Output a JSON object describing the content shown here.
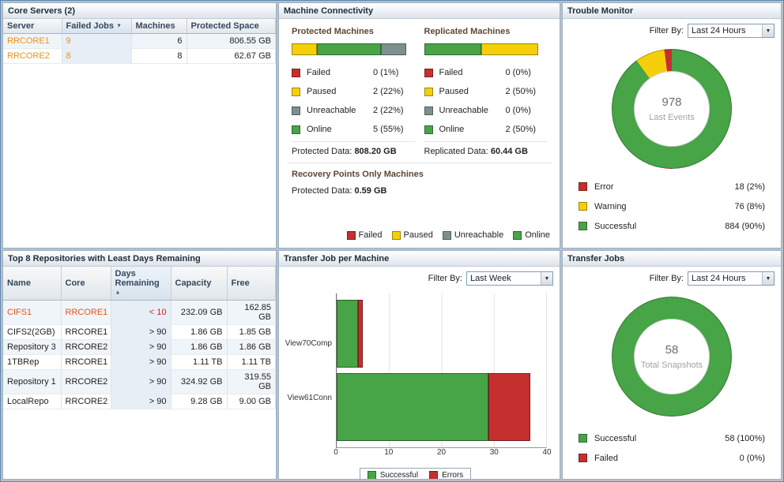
{
  "icons": {
    "sort_desc": "▼",
    "sort_asc": "▲",
    "dropdown": "▼"
  },
  "colors": {
    "online_green": "#47a447",
    "paused_yellow": "#f5cf0a",
    "failed_red": "#c5302f",
    "unreachable_gray": "#7e8f8f",
    "link_orange": "#ec9216",
    "alert_orange": "#e2571b"
  },
  "core_servers": {
    "title": "Core Servers (2)",
    "headers": {
      "server": "Server",
      "failed_jobs": "Failed Jobs",
      "machines": "Machines",
      "protected_space": "Protected Space"
    },
    "rows": [
      {
        "server": "RRCORE1",
        "failed_jobs": "9",
        "machines": "6",
        "protected_space": "806.55 GB"
      },
      {
        "server": "RRCORE2",
        "failed_jobs": "8",
        "machines": "8",
        "protected_space": "62.67 GB"
      }
    ]
  },
  "machine_connectivity": {
    "title": "Machine Connectivity",
    "protected": {
      "heading": "Protected Machines",
      "bar": [
        {
          "name": "Paused",
          "pct": 22,
          "color": "#f5cf0a"
        },
        {
          "name": "Online",
          "pct": 56,
          "color": "#47a447"
        },
        {
          "name": "Unreachable",
          "pct": 22,
          "color": "#7e8f8f"
        }
      ],
      "legend": [
        {
          "label": "Failed",
          "value": "0 (1%)",
          "color": "#c5302f"
        },
        {
          "label": "Paused",
          "value": "2 (22%)",
          "color": "#f5cf0a"
        },
        {
          "label": "Unreachable",
          "value": "2 (22%)",
          "color": "#7e8f8f"
        },
        {
          "label": "Online",
          "value": "5 (55%)",
          "color": "#47a447"
        }
      ],
      "data_label": "Protected Data:",
      "data_value": "808.20 GB"
    },
    "replicated": {
      "heading": "Replicated Machines",
      "bar": [
        {
          "name": "Online",
          "pct": 50,
          "color": "#47a447"
        },
        {
          "name": "Paused",
          "pct": 50,
          "color": "#f5cf0a"
        }
      ],
      "legend": [
        {
          "label": "Failed",
          "value": "0 (0%)",
          "color": "#c5302f"
        },
        {
          "label": "Paused",
          "value": "2 (50%)",
          "color": "#f5cf0a"
        },
        {
          "label": "Unreachable",
          "value": "0 (0%)",
          "color": "#7e8f8f"
        },
        {
          "label": "Online",
          "value": "2 (50%)",
          "color": "#47a447"
        }
      ],
      "data_label": "Replicated Data:",
      "data_value": "60.44 GB"
    },
    "recovery_points_only": {
      "heading": "Recovery Points Only Machines",
      "data_label": "Protected Data:",
      "data_value": "0.59 GB"
    },
    "bottom_legend": [
      {
        "label": "Failed",
        "color": "#c5302f"
      },
      {
        "label": "Paused",
        "color": "#f5cf0a"
      },
      {
        "label": "Unreachable",
        "color": "#7e8f8f"
      },
      {
        "label": "Online",
        "color": "#47a447"
      }
    ]
  },
  "trouble_monitor": {
    "title": "Trouble Monitor",
    "filter_label": "Filter By:",
    "filter_value": "Last 24 Hours",
    "donut": {
      "center_value": "978",
      "center_label": "Last Events",
      "segments": [
        {
          "name": "Successful",
          "pct": 90,
          "color": "#47a447"
        },
        {
          "name": "Warning",
          "pct": 8,
          "color": "#f5cf0a"
        },
        {
          "name": "Error",
          "pct": 2,
          "color": "#c5302f"
        }
      ]
    },
    "legend": [
      {
        "label": "Error",
        "value": "18 (2%)",
        "color": "#c5302f"
      },
      {
        "label": "Warning",
        "value": "76 (8%)",
        "color": "#f5cf0a"
      },
      {
        "label": "Successful",
        "value": "884 (90%)",
        "color": "#47a447"
      }
    ]
  },
  "repositories": {
    "title": "Top 8 Repositories with Least Days Remaining",
    "headers": {
      "name": "Name",
      "core": "Core",
      "days_remaining": "Days Remaining",
      "capacity": "Capacity",
      "free": "Free"
    },
    "rows": [
      {
        "name": "CIFS1",
        "core": "RRCORE1",
        "days": "< 10",
        "capacity": "232.09 GB",
        "free": "162.85 GB"
      },
      {
        "name": "CIFS2(2GB)",
        "core": "RRCORE1",
        "days": "> 90",
        "capacity": "1.86 GB",
        "free": "1.85 GB"
      },
      {
        "name": "Repository 3",
        "core": "RRCORE2",
        "days": "> 90",
        "capacity": "1.86 GB",
        "free": "1.86 GB"
      },
      {
        "name": "1TBRep",
        "core": "RRCORE1",
        "days": "> 90",
        "capacity": "1.11 TB",
        "free": "1.11 TB"
      },
      {
        "name": "Repository 1",
        "core": "RRCORE2",
        "days": "> 90",
        "capacity": "324.92 GB",
        "free": "319.55 GB"
      },
      {
        "name": "LocalRepo",
        "core": "RRCORE2",
        "days": "> 90",
        "capacity": "9.28 GB",
        "free": "9.00 GB"
      }
    ]
  },
  "transfer_per_machine": {
    "title": "Transfer Job per Machine",
    "filter_label": "Filter By:",
    "filter_value": "Last Week",
    "chart": {
      "type": "bar",
      "xmax": 40,
      "ticks": [
        "0",
        "10",
        "20",
        "30",
        "40"
      ],
      "colors": {
        "successful": "#47a447",
        "errors": "#c5302f"
      },
      "rows": [
        {
          "label": "View70Comp",
          "successful": 4,
          "errors": 1
        },
        {
          "label": "View61Conn",
          "successful": 29,
          "errors": 8
        }
      ],
      "legend": [
        {
          "label": "Successful",
          "color": "#47a447"
        },
        {
          "label": "Errors",
          "color": "#c5302f"
        }
      ]
    }
  },
  "transfer_jobs": {
    "title": "Transfer Jobs",
    "filter_label": "Filter By:",
    "filter_value": "Last 24 Hours",
    "donut": {
      "center_value": "58",
      "center_label": "Total Snapshots",
      "segments": [
        {
          "name": "Successful",
          "pct": 100,
          "color": "#47a447"
        }
      ]
    },
    "legend": [
      {
        "label": "Successful",
        "value": "58 (100%)",
        "color": "#47a447"
      },
      {
        "label": "Failed",
        "value": "0 (0%)",
        "color": "#c5302f"
      }
    ]
  }
}
